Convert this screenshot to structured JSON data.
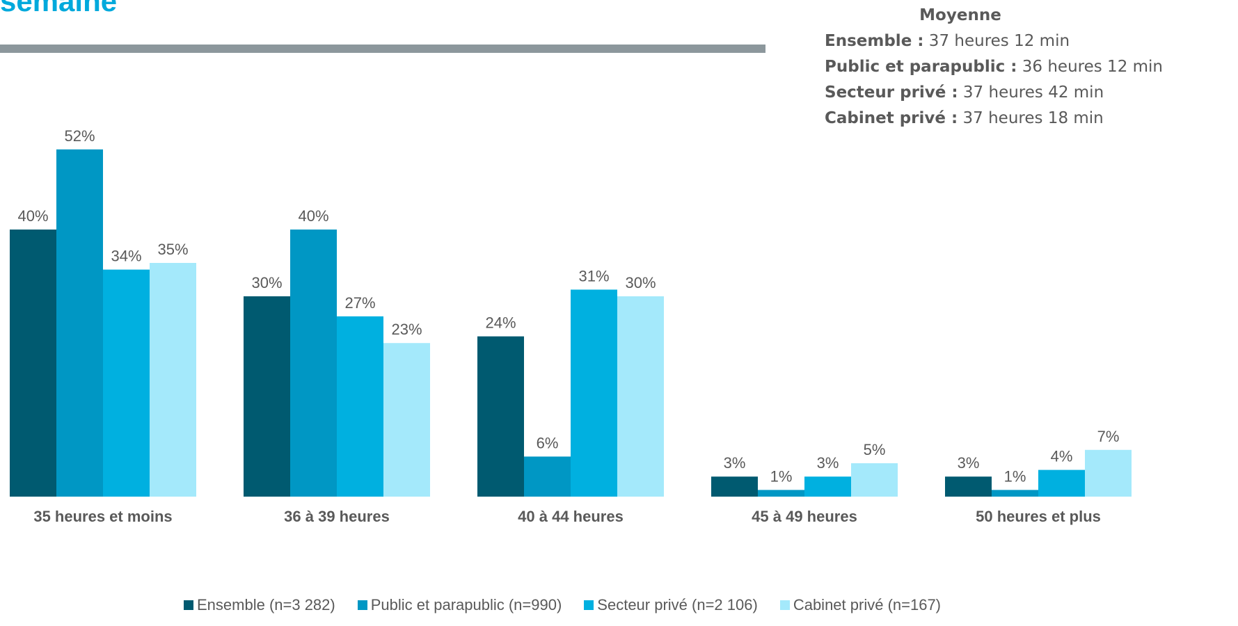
{
  "header": {
    "title": "semaine"
  },
  "averages": {
    "heading": "Moyenne",
    "rows": [
      {
        "label": "Ensemble :",
        "value": " 37 heures 12 min"
      },
      {
        "label": "Public et parapublic :",
        "value": " 36 heures 12 min"
      },
      {
        "label": "Secteur privé :",
        "value": " 37 heures 42 min"
      },
      {
        "label": "Cabinet privé :",
        "value": " 37 heures 18 min"
      }
    ]
  },
  "chart_data": {
    "type": "bar",
    "categories": [
      "35 heures et moins",
      "36 à 39 heures",
      "40 à 44 heures",
      "45 à 49 heures",
      "50 heures et plus"
    ],
    "series": [
      {
        "name": "Ensemble (n=3 282)",
        "color": "#005a70",
        "values": [
          40,
          30,
          24,
          3,
          3
        ]
      },
      {
        "name": "Public et parapublic (n=990)",
        "color": "#0097c4",
        "values": [
          52,
          40,
          6,
          1,
          1
        ]
      },
      {
        "name": "Secteur privé (n=2 106)",
        "color": "#00b0e0",
        "values": [
          34,
          27,
          31,
          3,
          4
        ]
      },
      {
        "name": "Cabinet privé (n=167)",
        "color": "#a4e9fb",
        "values": [
          35,
          23,
          30,
          5,
          7
        ]
      }
    ],
    "value_suffix": "%",
    "title": "",
    "xlabel": "",
    "ylabel": "",
    "ylim": [
      0,
      52
    ],
    "grid": false,
    "legend_position": "bottom"
  }
}
